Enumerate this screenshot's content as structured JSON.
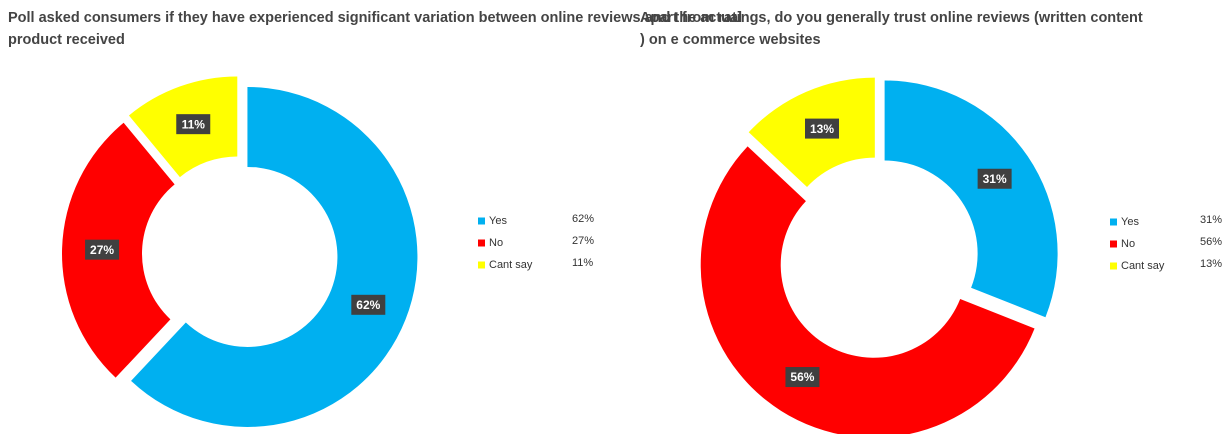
{
  "chart_data": [
    {
      "type": "pie",
      "title": "Poll asked consumers if they have experienced significant variation between online reviews and the actual product received",
      "categories": [
        "Yes",
        "No",
        "Cant say"
      ],
      "values": [
        62,
        27,
        11
      ],
      "value_labels": [
        "62%",
        "27%",
        "11%"
      ],
      "colors": [
        "#00b0f0",
        "#ff0000",
        "#ffff00"
      ]
    },
    {
      "type": "pie",
      "title": "Apart from ratings, do you generally trust online reviews (written content ) on e commerce websites",
      "categories": [
        "Yes",
        "No",
        "Cant say"
      ],
      "values": [
        31,
        56,
        13
      ],
      "value_labels": [
        "31%",
        "56%",
        "13%"
      ],
      "colors": [
        "#00b0f0",
        "#ff0000",
        "#ffff00"
      ]
    }
  ]
}
